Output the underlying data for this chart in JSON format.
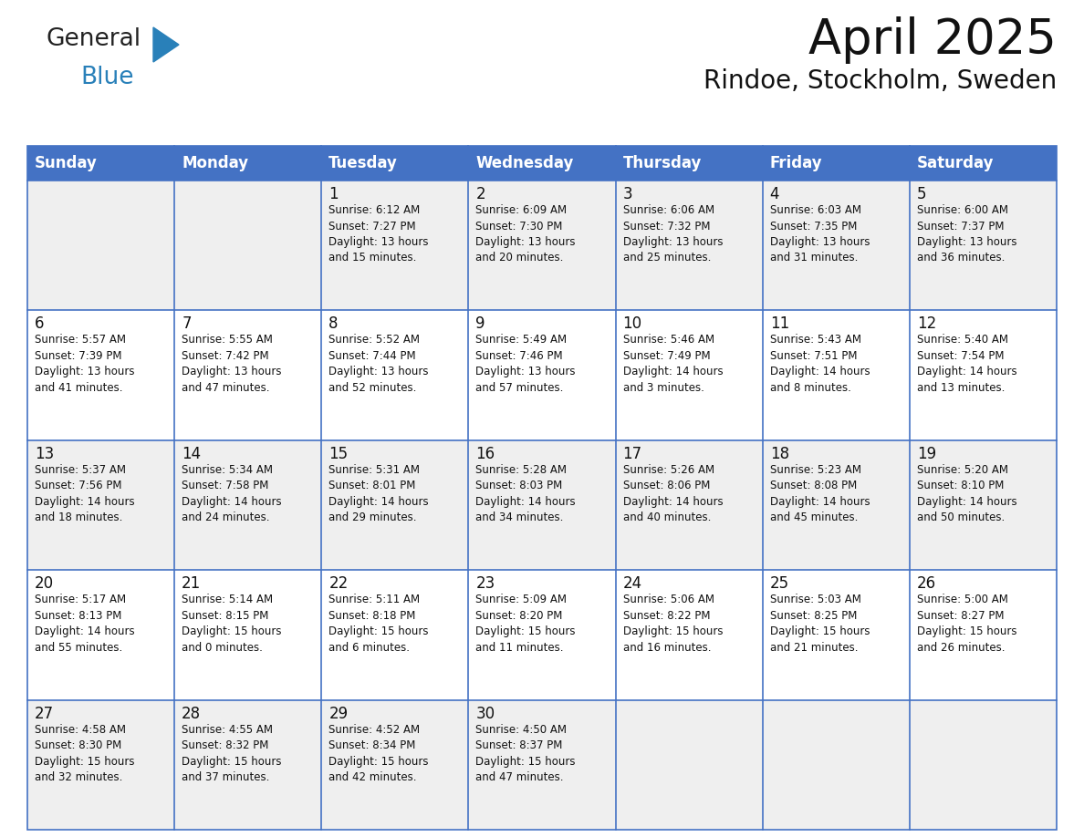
{
  "title": "April 2025",
  "subtitle": "Rindoe, Stockholm, Sweden",
  "header_bg_color": "#4472c4",
  "header_text_color": "#ffffff",
  "odd_row_bg": "#efefef",
  "even_row_bg": "#ffffff",
  "border_color": "#4472c4",
  "day_headers": [
    "Sunday",
    "Monday",
    "Tuesday",
    "Wednesday",
    "Thursday",
    "Friday",
    "Saturday"
  ],
  "days": [
    {
      "date": "",
      "info": ""
    },
    {
      "date": "",
      "info": ""
    },
    {
      "date": "1",
      "info": "Sunrise: 6:12 AM\nSunset: 7:27 PM\nDaylight: 13 hours\nand 15 minutes."
    },
    {
      "date": "2",
      "info": "Sunrise: 6:09 AM\nSunset: 7:30 PM\nDaylight: 13 hours\nand 20 minutes."
    },
    {
      "date": "3",
      "info": "Sunrise: 6:06 AM\nSunset: 7:32 PM\nDaylight: 13 hours\nand 25 minutes."
    },
    {
      "date": "4",
      "info": "Sunrise: 6:03 AM\nSunset: 7:35 PM\nDaylight: 13 hours\nand 31 minutes."
    },
    {
      "date": "5",
      "info": "Sunrise: 6:00 AM\nSunset: 7:37 PM\nDaylight: 13 hours\nand 36 minutes."
    },
    {
      "date": "6",
      "info": "Sunrise: 5:57 AM\nSunset: 7:39 PM\nDaylight: 13 hours\nand 41 minutes."
    },
    {
      "date": "7",
      "info": "Sunrise: 5:55 AM\nSunset: 7:42 PM\nDaylight: 13 hours\nand 47 minutes."
    },
    {
      "date": "8",
      "info": "Sunrise: 5:52 AM\nSunset: 7:44 PM\nDaylight: 13 hours\nand 52 minutes."
    },
    {
      "date": "9",
      "info": "Sunrise: 5:49 AM\nSunset: 7:46 PM\nDaylight: 13 hours\nand 57 minutes."
    },
    {
      "date": "10",
      "info": "Sunrise: 5:46 AM\nSunset: 7:49 PM\nDaylight: 14 hours\nand 3 minutes."
    },
    {
      "date": "11",
      "info": "Sunrise: 5:43 AM\nSunset: 7:51 PM\nDaylight: 14 hours\nand 8 minutes."
    },
    {
      "date": "12",
      "info": "Sunrise: 5:40 AM\nSunset: 7:54 PM\nDaylight: 14 hours\nand 13 minutes."
    },
    {
      "date": "13",
      "info": "Sunrise: 5:37 AM\nSunset: 7:56 PM\nDaylight: 14 hours\nand 18 minutes."
    },
    {
      "date": "14",
      "info": "Sunrise: 5:34 AM\nSunset: 7:58 PM\nDaylight: 14 hours\nand 24 minutes."
    },
    {
      "date": "15",
      "info": "Sunrise: 5:31 AM\nSunset: 8:01 PM\nDaylight: 14 hours\nand 29 minutes."
    },
    {
      "date": "16",
      "info": "Sunrise: 5:28 AM\nSunset: 8:03 PM\nDaylight: 14 hours\nand 34 minutes."
    },
    {
      "date": "17",
      "info": "Sunrise: 5:26 AM\nSunset: 8:06 PM\nDaylight: 14 hours\nand 40 minutes."
    },
    {
      "date": "18",
      "info": "Sunrise: 5:23 AM\nSunset: 8:08 PM\nDaylight: 14 hours\nand 45 minutes."
    },
    {
      "date": "19",
      "info": "Sunrise: 5:20 AM\nSunset: 8:10 PM\nDaylight: 14 hours\nand 50 minutes."
    },
    {
      "date": "20",
      "info": "Sunrise: 5:17 AM\nSunset: 8:13 PM\nDaylight: 14 hours\nand 55 minutes."
    },
    {
      "date": "21",
      "info": "Sunrise: 5:14 AM\nSunset: 8:15 PM\nDaylight: 15 hours\nand 0 minutes."
    },
    {
      "date": "22",
      "info": "Sunrise: 5:11 AM\nSunset: 8:18 PM\nDaylight: 15 hours\nand 6 minutes."
    },
    {
      "date": "23",
      "info": "Sunrise: 5:09 AM\nSunset: 8:20 PM\nDaylight: 15 hours\nand 11 minutes."
    },
    {
      "date": "24",
      "info": "Sunrise: 5:06 AM\nSunset: 8:22 PM\nDaylight: 15 hours\nand 16 minutes."
    },
    {
      "date": "25",
      "info": "Sunrise: 5:03 AM\nSunset: 8:25 PM\nDaylight: 15 hours\nand 21 minutes."
    },
    {
      "date": "26",
      "info": "Sunrise: 5:00 AM\nSunset: 8:27 PM\nDaylight: 15 hours\nand 26 minutes."
    },
    {
      "date": "27",
      "info": "Sunrise: 4:58 AM\nSunset: 8:30 PM\nDaylight: 15 hours\nand 32 minutes."
    },
    {
      "date": "28",
      "info": "Sunrise: 4:55 AM\nSunset: 8:32 PM\nDaylight: 15 hours\nand 37 minutes."
    },
    {
      "date": "29",
      "info": "Sunrise: 4:52 AM\nSunset: 8:34 PM\nDaylight: 15 hours\nand 42 minutes."
    },
    {
      "date": "30",
      "info": "Sunrise: 4:50 AM\nSunset: 8:37 PM\nDaylight: 15 hours\nand 47 minutes."
    },
    {
      "date": "",
      "info": ""
    },
    {
      "date": "",
      "info": ""
    },
    {
      "date": "",
      "info": ""
    }
  ],
  "logo_text1": "General",
  "logo_text2": "Blue",
  "logo_text1_color": "#222222",
  "logo_text2_color": "#2980b9",
  "logo_triangle_color": "#2980b9",
  "title_fontsize": 38,
  "subtitle_fontsize": 20,
  "header_fontsize": 12,
  "date_fontsize": 12,
  "info_fontsize": 8.5
}
